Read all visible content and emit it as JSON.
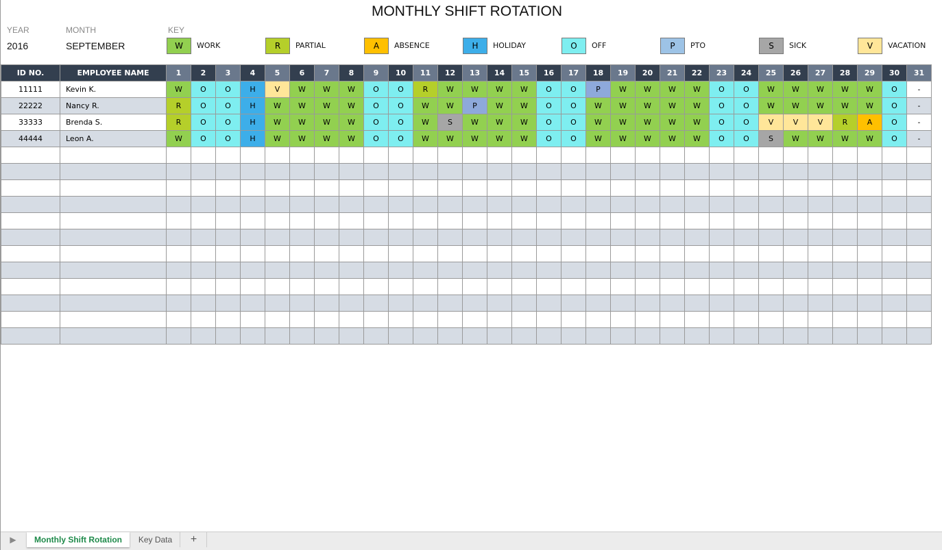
{
  "title": "MONTHLY SHIFT ROTATION",
  "year_label": "YEAR",
  "year": "2016",
  "month_label": "MONTH",
  "month": "SEPTEMBER",
  "key_label": "KEY",
  "key": [
    {
      "code": "W",
      "label": "WORK",
      "color": "#92d050"
    },
    {
      "code": "R",
      "label": "PARTIAL",
      "color": "#b5cf2a"
    },
    {
      "code": "A",
      "label": "ABSENCE",
      "color": "#ffc000"
    },
    {
      "code": "H",
      "label": "HOLIDAY",
      "color": "#3daee9"
    },
    {
      "code": "O",
      "label": "OFF",
      "color": "#7eeef0"
    },
    {
      "code": "P",
      "label": "PTO",
      "color": "#9dc3e6"
    },
    {
      "code": "S",
      "label": "SICK",
      "color": "#a6a6a6"
    },
    {
      "code": "V",
      "label": "VACATION",
      "color": "#ffe699"
    }
  ],
  "table": {
    "headers": {
      "id": "ID NO.",
      "name": "EMPLOYEE NAME"
    },
    "days": [
      "1",
      "2",
      "3",
      "4",
      "5",
      "6",
      "7",
      "8",
      "9",
      "10",
      "11",
      "12",
      "13",
      "14",
      "15",
      "16",
      "17",
      "18",
      "19",
      "20",
      "21",
      "22",
      "23",
      "24",
      "25",
      "26",
      "27",
      "28",
      "29",
      "30",
      "31"
    ],
    "rows": [
      {
        "id": "11111",
        "name": "Kevin K.",
        "shifts": [
          "W",
          "O",
          "O",
          "H",
          "V",
          "W",
          "W",
          "W",
          "O",
          "O",
          "R",
          "W",
          "W",
          "W",
          "W",
          "O",
          "O",
          "P",
          "W",
          "W",
          "W",
          "W",
          "O",
          "O",
          "W",
          "W",
          "W",
          "W",
          "W",
          "O",
          "-"
        ]
      },
      {
        "id": "22222",
        "name": "Nancy R.",
        "shifts": [
          "R",
          "O",
          "O",
          "H",
          "W",
          "W",
          "W",
          "W",
          "O",
          "O",
          "W",
          "W",
          "P",
          "W",
          "W",
          "O",
          "O",
          "W",
          "W",
          "W",
          "W",
          "W",
          "O",
          "O",
          "W",
          "W",
          "W",
          "W",
          "W",
          "O",
          "-"
        ]
      },
      {
        "id": "33333",
        "name": "Brenda S.",
        "shifts": [
          "R",
          "O",
          "O",
          "H",
          "W",
          "W",
          "W",
          "W",
          "O",
          "O",
          "W",
          "S",
          "W",
          "W",
          "W",
          "O",
          "O",
          "W",
          "W",
          "W",
          "W",
          "W",
          "O",
          "O",
          "V",
          "V",
          "V",
          "R",
          "A",
          "O",
          "-"
        ]
      },
      {
        "id": "44444",
        "name": "Leon A.",
        "shifts": [
          "W",
          "O",
          "O",
          "H",
          "W",
          "W",
          "W",
          "W",
          "O",
          "O",
          "W",
          "W",
          "W",
          "W",
          "W",
          "O",
          "O",
          "W",
          "W",
          "W",
          "W",
          "W",
          "O",
          "O",
          "S",
          "W",
          "W",
          "W",
          "W",
          "O",
          "-"
        ]
      }
    ]
  },
  "cell_colors": {
    "P": "#8ea9db"
  },
  "sheet_tabs": [
    "Monthly Shift Rotation",
    "Key Data"
  ],
  "add_sheet": "+"
}
